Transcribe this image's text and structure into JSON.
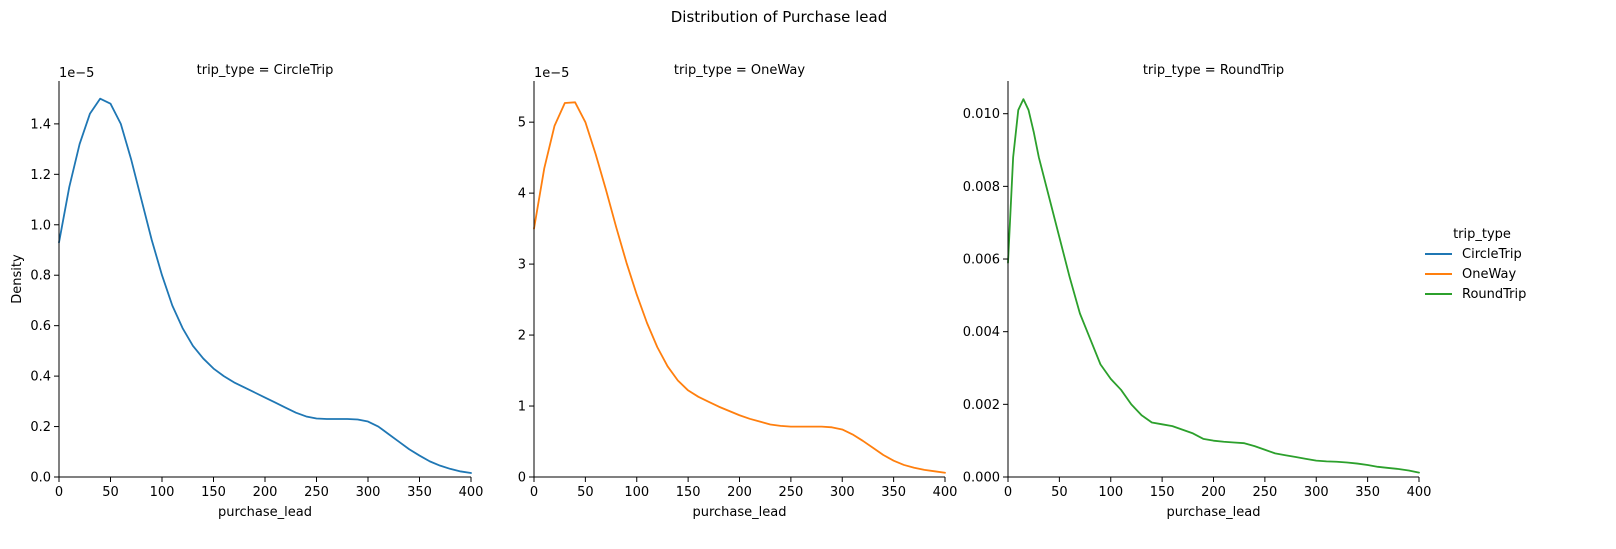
{
  "figure": {
    "title": "Distribution of Purchase lead"
  },
  "legend": {
    "title": "trip_type",
    "placement": "right"
  },
  "chart_data": [
    {
      "type": "line",
      "title": "trip_type = CircleTrip",
      "xlabel": "purchase_lead",
      "ylabel": "Density",
      "xlim": [
        0,
        400
      ],
      "ylim": [
        0,
        1.57
      ],
      "y_offset_label": "1e−5",
      "xticks": [
        0,
        50,
        100,
        150,
        200,
        250,
        300,
        350,
        400
      ],
      "xtick_labels": [
        "0",
        "50",
        "100",
        "150",
        "200",
        "250",
        "300",
        "350",
        "400"
      ],
      "yticks": [
        0,
        0.2,
        0.4,
        0.6,
        0.8,
        1.0,
        1.2,
        1.4
      ],
      "ytick_labels": [
        "0.0",
        "0.2",
        "0.4",
        "0.6",
        "0.8",
        "1.0",
        "1.2",
        "1.4"
      ],
      "grid": false,
      "series": [
        {
          "name": "CircleTrip",
          "color": "#1f77b4",
          "x": [
            0,
            10,
            20,
            30,
            40,
            50,
            60,
            70,
            80,
            90,
            100,
            110,
            120,
            130,
            140,
            150,
            160,
            170,
            180,
            190,
            200,
            210,
            220,
            230,
            240,
            250,
            260,
            270,
            280,
            290,
            300,
            310,
            320,
            330,
            340,
            350,
            360,
            370,
            380,
            390,
            400
          ],
          "y": [
            0.93,
            1.15,
            1.32,
            1.44,
            1.5,
            1.48,
            1.4,
            1.26,
            1.1,
            0.94,
            0.8,
            0.68,
            0.59,
            0.52,
            0.47,
            0.43,
            0.4,
            0.375,
            0.355,
            0.335,
            0.315,
            0.295,
            0.275,
            0.255,
            0.24,
            0.232,
            0.23,
            0.23,
            0.23,
            0.228,
            0.22,
            0.2,
            0.17,
            0.14,
            0.11,
            0.085,
            0.062,
            0.045,
            0.032,
            0.022,
            0.016
          ]
        }
      ]
    },
    {
      "type": "line",
      "title": "trip_type = OneWay",
      "xlabel": "purchase_lead",
      "ylabel": "",
      "xlim": [
        0,
        400
      ],
      "ylim": [
        0,
        5.58
      ],
      "y_offset_label": "1e−5",
      "xticks": [
        0,
        50,
        100,
        150,
        200,
        250,
        300,
        350,
        400
      ],
      "xtick_labels": [
        "0",
        "50",
        "100",
        "150",
        "200",
        "250",
        "300",
        "350",
        "400"
      ],
      "yticks": [
        0,
        1,
        2,
        3,
        4,
        5
      ],
      "ytick_labels": [
        "0",
        "1",
        "2",
        "3",
        "4",
        "5"
      ],
      "grid": false,
      "series": [
        {
          "name": "OneWay",
          "color": "#ff7f0e",
          "x": [
            0,
            10,
            20,
            30,
            40,
            50,
            60,
            70,
            80,
            90,
            100,
            110,
            120,
            130,
            140,
            150,
            160,
            170,
            180,
            190,
            200,
            210,
            220,
            230,
            240,
            250,
            260,
            270,
            280,
            290,
            300,
            310,
            320,
            330,
            340,
            350,
            360,
            370,
            380,
            390,
            400
          ],
          "y": [
            3.5,
            4.35,
            4.95,
            5.27,
            5.28,
            5.0,
            4.55,
            4.05,
            3.52,
            3.02,
            2.57,
            2.17,
            1.83,
            1.56,
            1.36,
            1.22,
            1.13,
            1.06,
            0.99,
            0.93,
            0.87,
            0.82,
            0.78,
            0.74,
            0.72,
            0.71,
            0.71,
            0.71,
            0.71,
            0.7,
            0.67,
            0.6,
            0.51,
            0.41,
            0.31,
            0.23,
            0.17,
            0.13,
            0.1,
            0.08,
            0.06
          ]
        }
      ]
    },
    {
      "type": "line",
      "title": "trip_type = RoundTrip",
      "xlabel": "purchase_lead",
      "ylabel": "",
      "xlim": [
        0,
        400
      ],
      "ylim": [
        0,
        0.0109
      ],
      "y_offset_label": "",
      "xticks": [
        0,
        50,
        100,
        150,
        200,
        250,
        300,
        350,
        400
      ],
      "xtick_labels": [
        "0",
        "50",
        "100",
        "150",
        "200",
        "250",
        "300",
        "350",
        "400"
      ],
      "yticks": [
        0,
        0.002,
        0.004,
        0.006,
        0.008,
        0.01
      ],
      "ytick_labels": [
        "0.000",
        "0.002",
        "0.004",
        "0.006",
        "0.008",
        "0.010"
      ],
      "grid": false,
      "series": [
        {
          "name": "RoundTrip",
          "color": "#2ca02c",
          "x": [
            0,
            5,
            10,
            15,
            20,
            25,
            30,
            40,
            50,
            60,
            70,
            80,
            90,
            100,
            110,
            120,
            130,
            140,
            150,
            160,
            170,
            180,
            190,
            200,
            210,
            220,
            230,
            240,
            250,
            260,
            270,
            280,
            290,
            300,
            310,
            320,
            330,
            340,
            350,
            360,
            370,
            380,
            390,
            400
          ],
          "y": [
            0.0059,
            0.0088,
            0.0101,
            0.0104,
            0.0101,
            0.0095,
            0.0088,
            0.0077,
            0.0066,
            0.0055,
            0.0045,
            0.0038,
            0.0031,
            0.0027,
            0.0024,
            0.002,
            0.0017,
            0.0015,
            0.00145,
            0.0014,
            0.0013,
            0.0012,
            0.00105,
            0.001,
            0.00097,
            0.00095,
            0.00093,
            0.00085,
            0.00075,
            0.00065,
            0.0006,
            0.00055,
            0.0005,
            0.00045,
            0.00043,
            0.00042,
            0.0004,
            0.00037,
            0.00033,
            0.00028,
            0.00025,
            0.00022,
            0.00018,
            0.00012
          ]
        }
      ]
    }
  ]
}
